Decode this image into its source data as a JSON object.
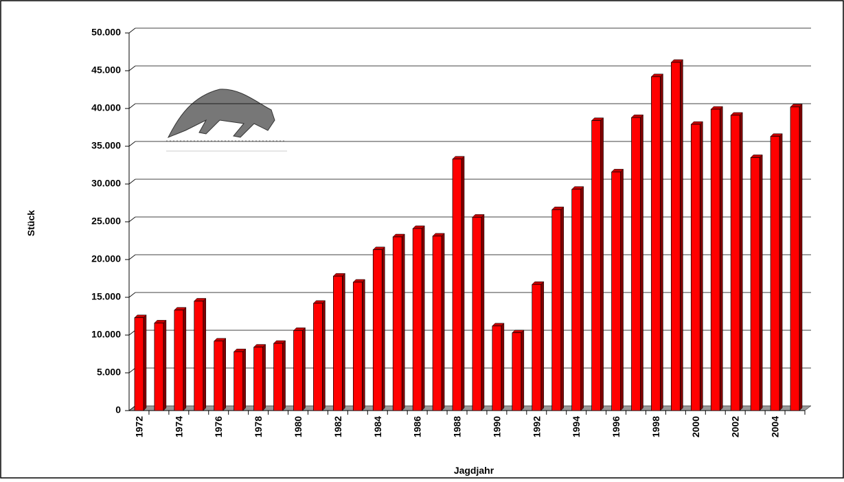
{
  "chart_data": {
    "type": "bar",
    "xlabel": "Jagdjahr",
    "ylabel": "Stück",
    "categories": [
      "1972",
      null,
      "1974",
      null,
      "1976",
      null,
      "1978",
      null,
      "1980",
      null,
      "1982",
      null,
      "1984",
      null,
      "1986",
      null,
      "1988",
      null,
      "1990",
      null,
      "1992",
      null,
      "1994",
      null,
      "1996",
      null,
      "1998",
      null,
      "2000",
      null,
      "2002",
      null,
      "2004",
      null
    ],
    "values": [
      12300,
      11600,
      13300,
      14500,
      9200,
      7800,
      8400,
      8900,
      10600,
      14200,
      17800,
      17000,
      21300,
      23000,
      24100,
      23100,
      33300,
      25600,
      11200,
      10300,
      16700,
      26600,
      29300,
      38400,
      31600,
      38800,
      44200,
      46100,
      37900,
      39900,
      39100,
      33500,
      36300,
      40200
    ],
    "color": "#ff0000",
    "ylim": [
      0,
      50000
    ],
    "yticks": [
      0,
      {
        "value": 5000,
        "label": "5.000"
      },
      {
        "value": 10000,
        "label": "10.000"
      },
      {
        "value": 15000,
        "label": "15.000"
      },
      {
        "value": 20000,
        "label": "20.000"
      },
      {
        "value": 25000,
        "label": "25.000"
      },
      {
        "value": 30000,
        "label": "30.000"
      },
      {
        "value": 35000,
        "label": "35.000"
      },
      {
        "value": 40000,
        "label": "40.000"
      },
      {
        "value": 45000,
        "label": "45.000"
      },
      {
        "value": 50000,
        "label": "50.000"
      }
    ],
    "grid": true
  }
}
